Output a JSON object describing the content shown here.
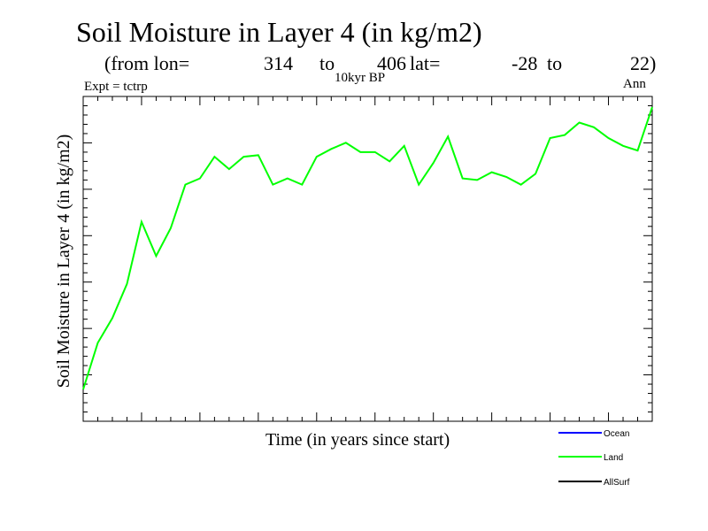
{
  "chart_data": {
    "type": "line",
    "title": "Soil Moisture in Layer 4 (in kg/m2)",
    "subtitle": {
      "prefix": "(from lon=",
      "lon_start": "314",
      "to1": "to",
      "lon_end": "406",
      "lat_label": "lat=",
      "lat_start": "-28",
      "to2": "to",
      "lat_end": "22)"
    },
    "experiment": "Expt = tctrp",
    "period": "10kyr BP",
    "season": "Ann",
    "xlabel": "Time (in years since start)",
    "ylabel": "Soil Moisture in Layer 4 (in kg/m2)",
    "xlim": [
      0,
      39
    ],
    "ylim": [
      0,
      100
    ],
    "grid": false,
    "legend_position": "bottom-right",
    "series": [
      {
        "name": "Ocean",
        "color": "#0000ff",
        "values": []
      },
      {
        "name": "Land",
        "color": "#00ff00",
        "x": [
          0,
          1,
          2,
          3,
          4,
          5,
          6,
          7,
          8,
          9,
          10,
          11,
          12,
          13,
          14,
          15,
          16,
          17,
          18,
          19,
          20,
          21,
          22,
          23,
          24,
          25,
          26,
          27,
          28,
          29,
          30,
          31,
          32,
          33,
          34,
          35,
          36,
          37,
          38,
          39
        ],
        "values": [
          10,
          25,
          33,
          44,
          64,
          53,
          62,
          76,
          78,
          85,
          81,
          85,
          85.5,
          76,
          78,
          76,
          85,
          87.5,
          89.5,
          86.5,
          86.5,
          83.5,
          88.5,
          76,
          83,
          91.5,
          78,
          77.5,
          80,
          78.5,
          76,
          79.5,
          91,
          92,
          96,
          94.5,
          91,
          88.5,
          87,
          101
        ]
      },
      {
        "name": "AllSurf",
        "color": "#000000",
        "values": []
      }
    ]
  }
}
